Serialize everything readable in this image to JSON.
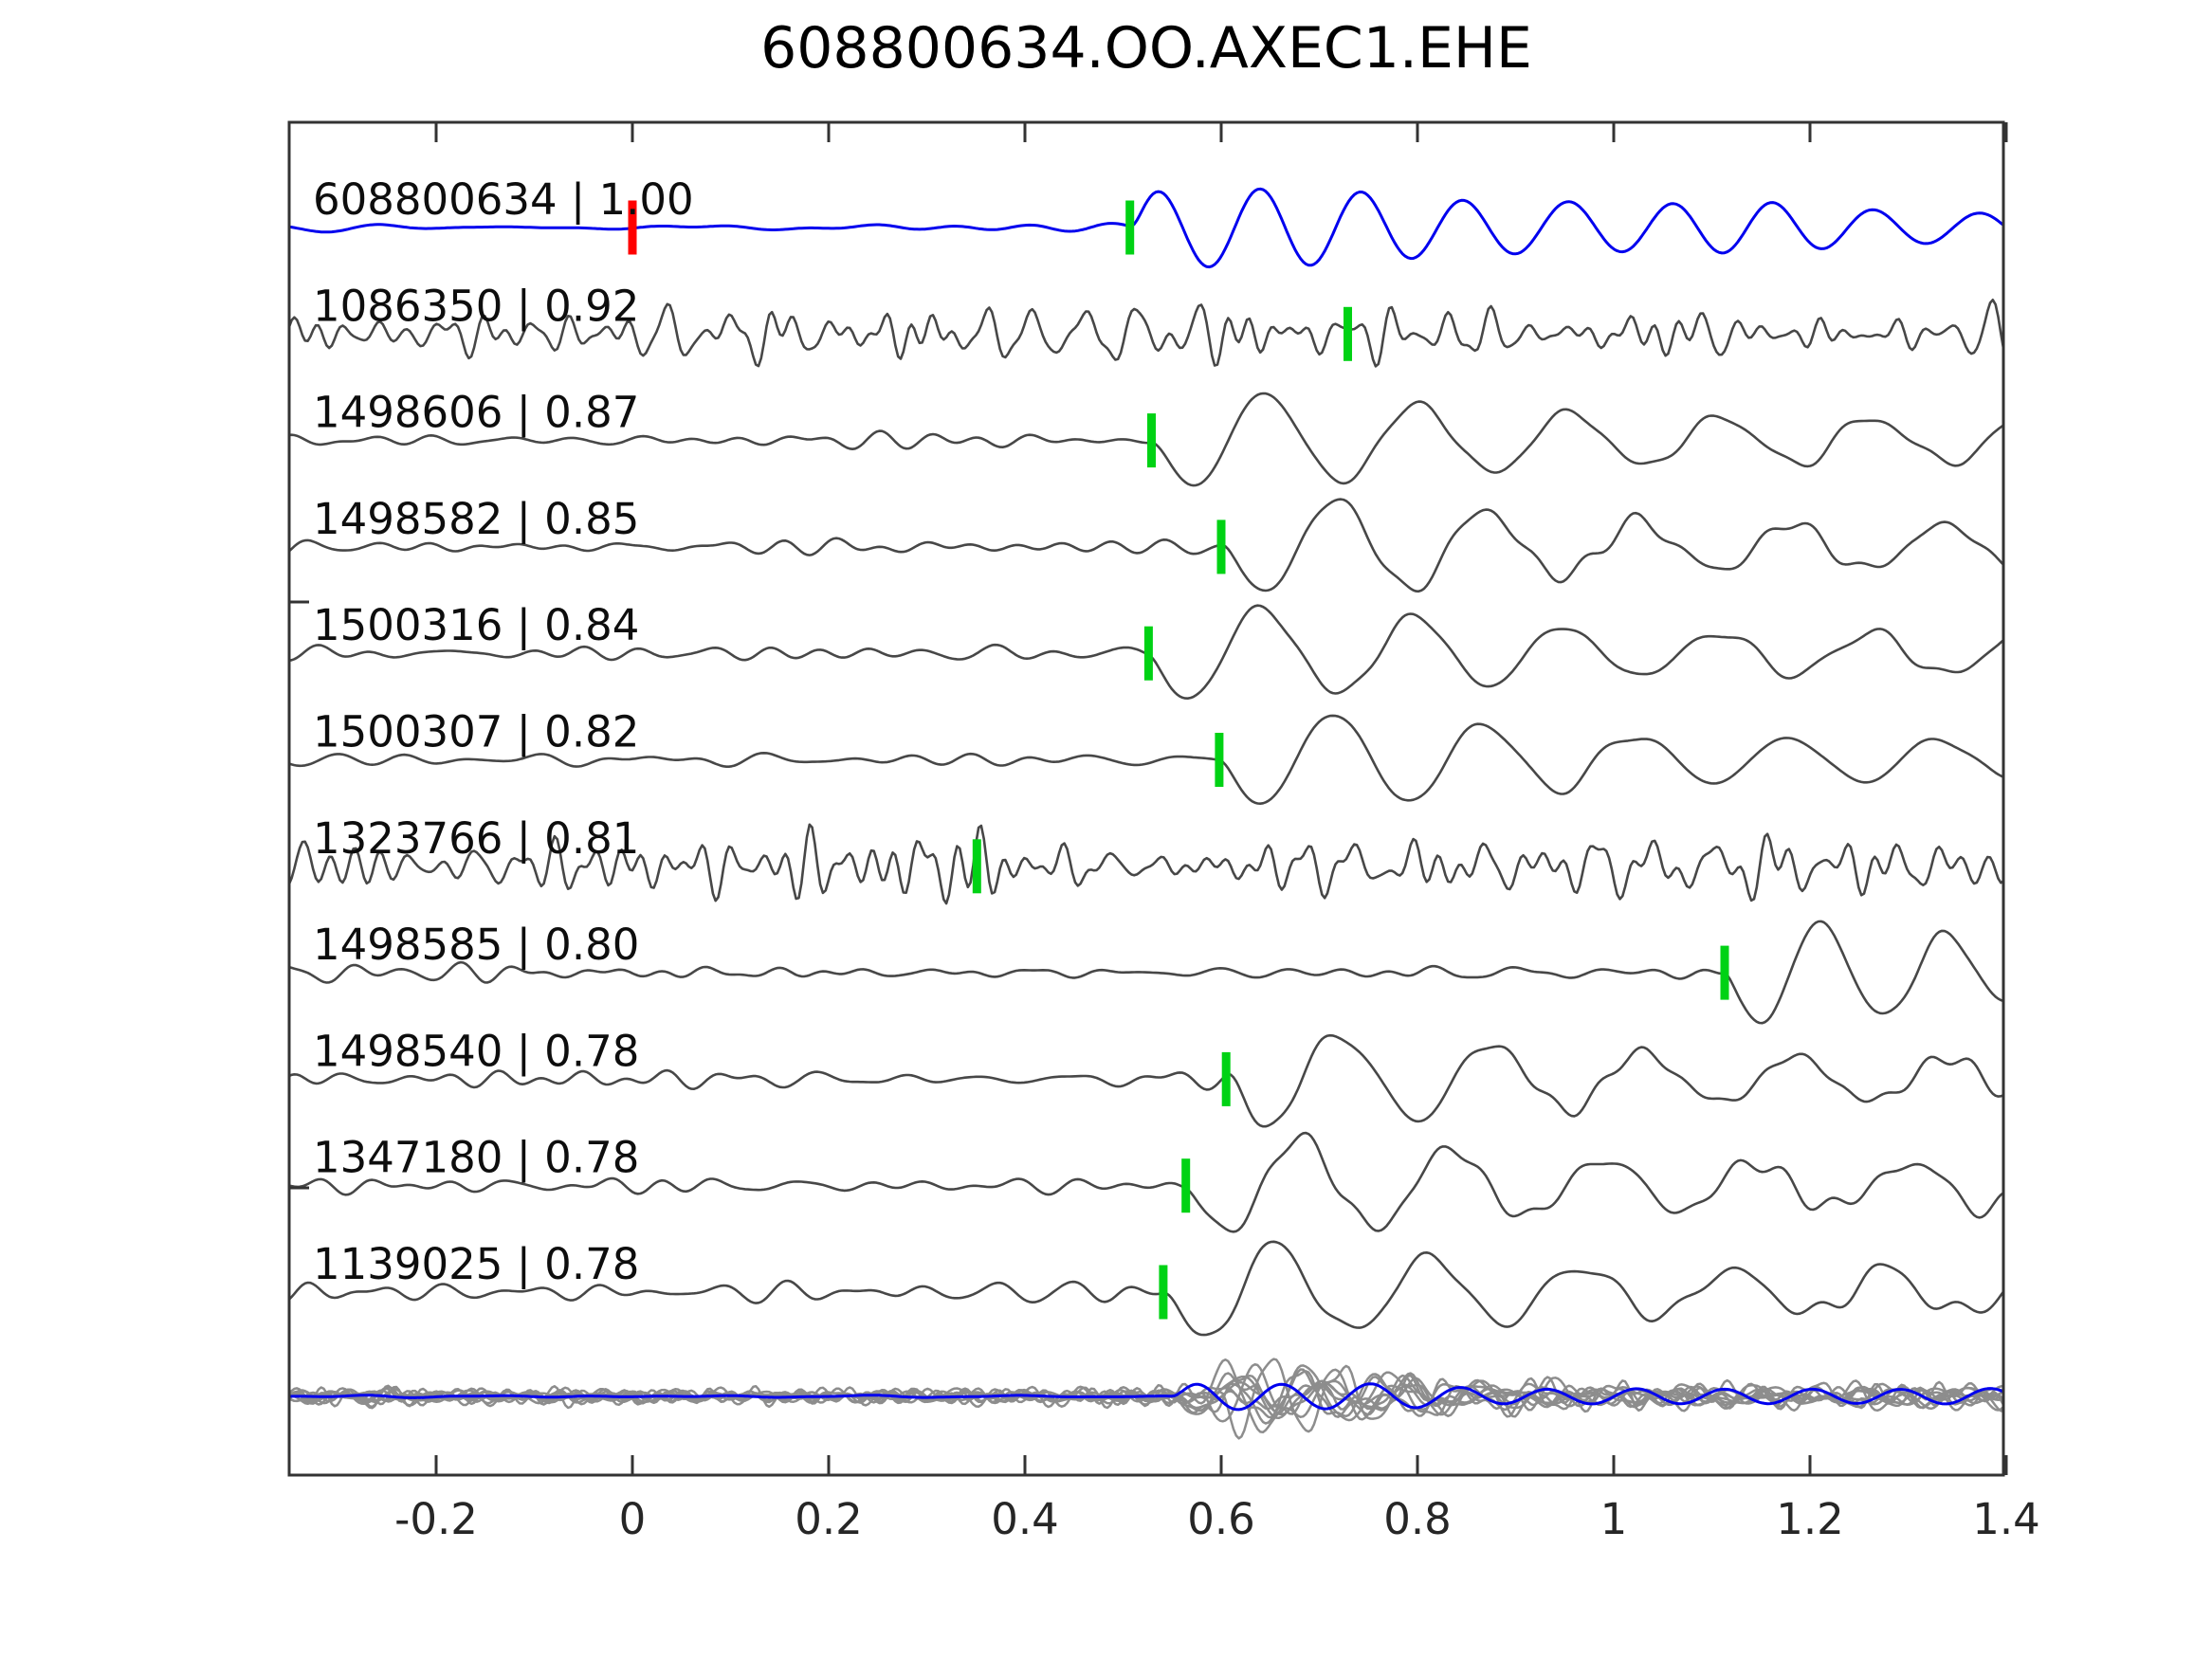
{
  "figure": {
    "title": "608800634.OO.AXEC1.EHE"
  },
  "chart_data": {
    "type": "line",
    "title": "608800634.OO.AXEC1.EHE",
    "xlabel": "",
    "ylabel": "",
    "x_axis": {
      "range": [
        -0.35,
        1.4
      ],
      "ticks": [
        -0.2,
        0,
        0.2,
        0.4,
        0.6,
        0.8,
        1,
        1.2,
        1.4
      ],
      "tick_labels": [
        "-0.2",
        "0",
        "0.2",
        "0.4",
        "0.6",
        "0.8",
        "1",
        "1.2",
        "1.4"
      ]
    },
    "grid": false,
    "legend": "none",
    "colors": {
      "template_trace": "#0000ee",
      "member_trace": "#474747",
      "overlay_gray": "#8d8d8d",
      "pick_marker": "#00d214",
      "zero_marker": "#ff0000",
      "axis": "#333333",
      "label_text": "#0d0d0d",
      "tick_text": "#262626"
    },
    "traces": [
      {
        "event_id": "608800634",
        "similarity": "1.00",
        "label": "608800634 | 1.00",
        "row": 0,
        "color": "#0000ee",
        "pick_time": 0.507,
        "zero_marker_time": 0,
        "seed": 11,
        "noise_amp": 5,
        "noise_f": [
          4,
          14
        ],
        "event": {
          "t0": 0.507,
          "amp": 47,
          "period": 0.105,
          "phase": 0,
          "attack": 0.012,
          "decay": 0.9,
          "floor": 0.3
        }
      },
      {
        "event_id": "1086350",
        "similarity": "0.92",
        "label": "1086350 | 0.92",
        "row": 1,
        "color": "#474747",
        "pick_time": 0.729,
        "seed": 22,
        "noise_amp": 36,
        "noise_f": [
          14,
          50
        ],
        "event": null
      },
      {
        "event_id": "1498606",
        "similarity": "0.87",
        "label": "1498606 | 0.87",
        "row": 2,
        "color": "#474747",
        "pick_time": 0.529,
        "seed": 33,
        "noise_amp": 10,
        "noise_f": [
          7,
          22
        ],
        "event": {
          "t0": 0.529,
          "amp": 62,
          "period": 0.155,
          "phase": 3.1416,
          "attack": 0.02,
          "decay": 0.55,
          "floor": 0.38
        }
      },
      {
        "event_id": "1498582",
        "similarity": "0.85",
        "label": "1498582 | 0.85",
        "row": 3,
        "color": "#474747",
        "pick_time": 0.6,
        "seed": 44,
        "noise_amp": 10,
        "noise_f": [
          7,
          22
        ],
        "event": {
          "t0": 0.6,
          "amp": 60,
          "period": 0.155,
          "phase": 3.1416,
          "attack": 0.02,
          "decay": 0.55,
          "floor": 0.38
        }
      },
      {
        "event_id": "1500316",
        "similarity": "0.84",
        "label": "1500316 | 0.84",
        "row": 4,
        "color": "#474747",
        "pick_time": 0.526,
        "seed": 55,
        "noise_amp": 9,
        "noise_f": [
          7,
          22
        ],
        "event": {
          "t0": 0.526,
          "amp": 60,
          "period": 0.155,
          "phase": 3.1416,
          "attack": 0.02,
          "decay": 0.55,
          "floor": 0.38
        }
      },
      {
        "event_id": "1500307",
        "similarity": "0.82",
        "label": "1500307 | 0.82",
        "row": 5,
        "color": "#474747",
        "pick_time": 0.598,
        "seed": 66,
        "noise_amp": 8,
        "noise_f": [
          7,
          22
        ],
        "event": {
          "t0": 0.598,
          "amp": 58,
          "period": 0.155,
          "phase": 3.1416,
          "attack": 0.02,
          "decay": 0.55,
          "floor": 0.38
        }
      },
      {
        "event_id": "1323766",
        "similarity": "0.81",
        "label": "1323766 | 0.81",
        "row": 6,
        "color": "#474747",
        "pick_time": 0.351,
        "seed": 77,
        "noise_amp": 44,
        "noise_f": [
          13,
          48
        ],
        "event": null
      },
      {
        "event_id": "1498585",
        "similarity": "0.80",
        "label": "1498585 | 0.80",
        "row": 7,
        "color": "#474747",
        "pick_time": 1.113,
        "seed": 88,
        "noise_amp": 11,
        "noise_f": [
          8,
          26
        ],
        "event": {
          "t0": 1.113,
          "amp": 58,
          "period": 0.13,
          "phase": 3.1416,
          "attack": 0.008,
          "decay": 0.55,
          "floor": 0.38
        }
      },
      {
        "event_id": "1498540",
        "similarity": "0.78",
        "label": "1498540 | 0.78",
        "row": 8,
        "color": "#474747",
        "pick_time": 0.605,
        "seed": 99,
        "noise_amp": 11,
        "noise_f": [
          8,
          24
        ],
        "event": {
          "t0": 0.605,
          "amp": 60,
          "period": 0.155,
          "phase": 3.1416,
          "attack": 0.02,
          "decay": 0.55,
          "floor": 0.38
        }
      },
      {
        "event_id": "1347180",
        "similarity": "0.78",
        "label": "1347180 | 0.78",
        "row": 9,
        "color": "#474747",
        "pick_time": 0.564,
        "seed": 110,
        "noise_amp": 11,
        "noise_f": [
          8,
          24
        ],
        "event": {
          "t0": 0.564,
          "amp": 62,
          "period": 0.155,
          "phase": 3.1416,
          "attack": 0.02,
          "decay": 0.55,
          "floor": 0.38
        }
      },
      {
        "event_id": "1139025",
        "similarity": "0.78",
        "label": "1139025 | 0.78",
        "row": 10,
        "color": "#474747",
        "pick_time": 0.541,
        "seed": 121,
        "noise_amp": 12,
        "noise_f": [
          8,
          24
        ],
        "event": {
          "t0": 0.541,
          "amp": 60,
          "period": 0.155,
          "phase": 3.1416,
          "attack": 0.02,
          "decay": 0.55,
          "floor": 0.38
        }
      }
    ],
    "stack_overlay": {
      "description": "all member traces overlaid at bottom with template on top",
      "template": {
        "color": "#0000ee",
        "seed": 300,
        "noise_amp": 2,
        "noise_f": [
          5,
          14
        ],
        "event": {
          "t0": 0.55,
          "amp": 17,
          "period": 0.09,
          "phase": 0,
          "attack": 0.015,
          "decay": 0.5,
          "floor": 0.45
        }
      },
      "gray_traces": [
        {
          "seed": 201,
          "noise_amp": 11,
          "noise_f": [
            12,
            45
          ],
          "event": {
            "t0": 0.56,
            "amp": 18,
            "period": 0.08,
            "phase": 3.1416,
            "attack": 0.015,
            "decay": 0.25,
            "floor": 0.2
          }
        },
        {
          "seed": 202,
          "noise_amp": 13,
          "noise_f": [
            12,
            45
          ],
          "event": {
            "t0": 0.58,
            "amp": 40,
            "period": 0.075,
            "phase": 3.1416,
            "attack": 0.015,
            "decay": 0.25,
            "floor": 0.2
          }
        },
        {
          "seed": 203,
          "noise_amp": 10,
          "noise_f": [
            12,
            45
          ],
          "event": {
            "t0": 0.55,
            "amp": 25,
            "period": 0.09,
            "phase": 3.1416,
            "attack": 0.015,
            "decay": 0.3,
            "floor": 0.2
          }
        },
        {
          "seed": 204,
          "noise_amp": 14,
          "noise_f": [
            12,
            45
          ],
          "event": {
            "t0": 0.6,
            "amp": 55,
            "period": 0.07,
            "phase": 3.1416,
            "attack": 0.015,
            "decay": 0.22,
            "floor": 0.18
          }
        },
        {
          "seed": 205,
          "noise_amp": 10,
          "noise_f": [
            12,
            45
          ],
          "event": {
            "t0": 0.57,
            "amp": 15,
            "period": 0.095,
            "phase": 0,
            "attack": 0.015,
            "decay": 0.3,
            "floor": 0.2
          }
        },
        {
          "seed": 206,
          "noise_amp": 12,
          "noise_f": [
            12,
            45
          ],
          "event": {
            "t0": 0.62,
            "amp": 30,
            "period": 0.08,
            "phase": 3.1416,
            "attack": 0.015,
            "decay": 0.28,
            "floor": 0.2
          }
        },
        {
          "seed": 207,
          "noise_amp": 13,
          "noise_f": [
            12,
            45
          ],
          "event": {
            "t0": 0.58,
            "amp": 48,
            "period": 0.085,
            "phase": 0,
            "attack": 0.015,
            "decay": 0.25,
            "floor": 0.18
          }
        },
        {
          "seed": 208,
          "noise_amp": 11,
          "noise_f": [
            12,
            45
          ],
          "event": {
            "t0": 0.55,
            "amp": 20,
            "period": 0.09,
            "phase": 3.1416,
            "attack": 0.015,
            "decay": 0.3,
            "floor": 0.2
          }
        },
        {
          "seed": 209,
          "noise_amp": 12,
          "noise_f": [
            12,
            45
          ],
          "event": {
            "t0": 0.59,
            "amp": 35,
            "period": 0.075,
            "phase": 0,
            "attack": 0.015,
            "decay": 0.26,
            "floor": 0.2
          }
        },
        {
          "seed": 210,
          "noise_amp": 12,
          "noise_f": [
            12,
            45
          ],
          "event": {
            "t0": 0.56,
            "amp": 26,
            "period": 0.085,
            "phase": 3.1416,
            "attack": 0.015,
            "decay": 0.3,
            "floor": 0.2
          }
        }
      ]
    }
  }
}
